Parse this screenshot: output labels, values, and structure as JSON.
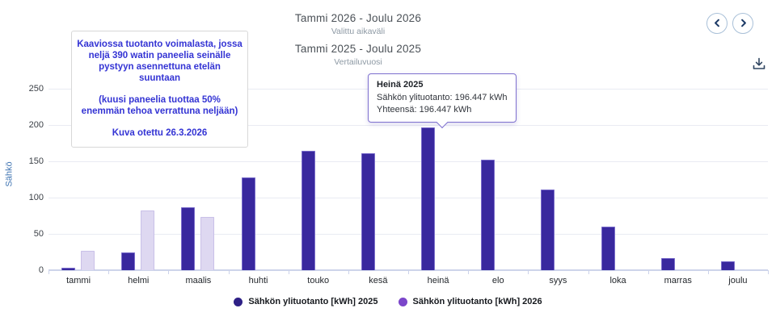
{
  "header": {
    "title_primary": "Tammi 2026 - Joulu 2026",
    "subtitle_primary": "Valittu aikaväli",
    "title_secondary": "Tammi 2025 - Joulu 2025",
    "subtitle_secondary": "Vertailuvuosi"
  },
  "toolbar": {
    "prev_icon": "chevron-left",
    "next_icon": "chevron-right",
    "download_icon": "download-tray-arrow"
  },
  "annotation": {
    "paragraph1": "Kaaviossa tuotanto voimalasta, jossa neljä 390 watin paneelia seinälle pystyyn asennettuna etelän suuntaan",
    "paragraph2": "(kuusi paneelia tuottaa 50% enemmän tehoa verrattuna neljään)",
    "paragraph3": "Kuva otettu 26.3.2026"
  },
  "tooltip": {
    "title": "Heinä 2025",
    "line1": "Sähkön ylituotanto: 196.447 kWh",
    "line2": "Yhteensä: 196.447 kWh"
  },
  "colors": {
    "bar_2025": "#39289e",
    "bar_2025_border": "#7a6dcb",
    "bar_2026": "#ded8f1",
    "bar_2026_border": "#c9c0e8",
    "legend_2025": "#2e2086",
    "legend_2026": "#7b46ca",
    "gridline": "#e9ebf3",
    "axis_line": "#cdd4ea",
    "annotation_text": "#3434d4",
    "tooltip_border": "#7e70cf"
  },
  "chart_data": {
    "type": "bar",
    "title": "",
    "xlabel": "",
    "ylabel": "Sähkö",
    "categories": [
      "tammi",
      "helmi",
      "maalis",
      "huhti",
      "touko",
      "kesä",
      "heinä",
      "elo",
      "syys",
      "loka",
      "marras",
      "joulu"
    ],
    "series": [
      {
        "name": "Sähkön ylituotanto [kWh] 2025",
        "bar_color": "#39289e",
        "bar_border": "#7a6dcb",
        "legend_color": "#2e2086",
        "values": [
          3,
          25,
          87,
          128,
          164,
          161,
          196.447,
          152,
          111,
          60,
          17,
          12
        ]
      },
      {
        "name": "Sähkön ylituotanto [kWh] 2026",
        "bar_color": "#ded8f1",
        "bar_border": "#c9c0e8",
        "legend_color": "#7b46ca",
        "values": [
          27,
          82,
          73,
          null,
          null,
          null,
          null,
          null,
          null,
          null,
          null,
          null
        ]
      }
    ],
    "yticks": [
      0,
      50,
      100,
      150,
      200,
      250
    ],
    "ylim": [
      0,
      250
    ],
    "grid": true,
    "legend_position": "bottom",
    "highlighted_point": {
      "series": "Sähkön ylituotanto [kWh] 2025",
      "category": "heinä",
      "value": 196.447
    }
  }
}
